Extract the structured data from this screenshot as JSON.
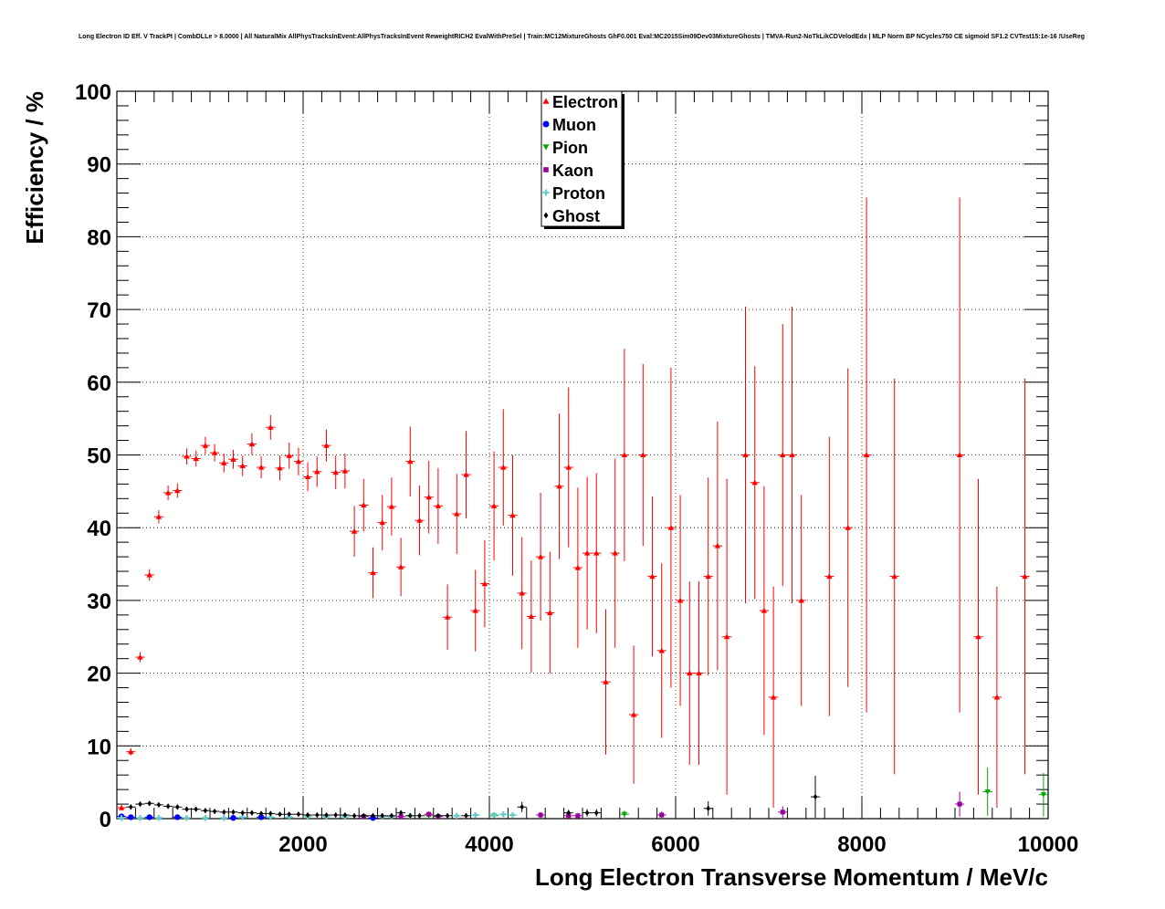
{
  "chart_data": {
    "type": "scatter",
    "title": "Long Electron ID Eff. V TrackPt | CombDLLe > 8.0000 | All NaturalMix AllPhysTracksInEvent:AllPhysTracksInEvent ReweightRICH2 EvalWithPreSel | Train:MC12MixtureGhosts GhF0.001 Eval:MC2015Sim09Dev03MixtureGhosts | TMVA-Run2-NoTkLikCDVelodEdx | MLP Norm BP NCycles750 CE sigmoid SF1.2 CVTest15:1e-16 !UseReg",
    "xlabel": "Long Electron Transverse Momentum / MeV/c",
    "ylabel": "Efficiency / %",
    "xlim": [
      0,
      10000
    ],
    "ylim": [
      0,
      100
    ],
    "xticks": [
      2000,
      4000,
      6000,
      8000,
      10000
    ],
    "yticks": [
      0,
      10,
      20,
      30,
      40,
      50,
      60,
      70,
      80,
      90,
      100
    ],
    "grid": true,
    "legend_position": "top-center",
    "series": [
      {
        "name": "Electron",
        "color": "#ff0000",
        "marker": "triangle-up",
        "points": [
          [
            50,
            1.5,
            0.4
          ],
          [
            150,
            9.2,
            0.5
          ],
          [
            250,
            22.2,
            0.7
          ],
          [
            350,
            33.5,
            0.8
          ],
          [
            450,
            41.5,
            0.9
          ],
          [
            550,
            44.8,
            1.0
          ],
          [
            650,
            45.1,
            1.0
          ],
          [
            750,
            49.8,
            1.1
          ],
          [
            850,
            49.5,
            1.1
          ],
          [
            950,
            51.3,
            1.2
          ],
          [
            1050,
            50.3,
            1.2
          ],
          [
            1150,
            48.9,
            1.3
          ],
          [
            1250,
            49.4,
            1.3
          ],
          [
            1350,
            48.5,
            1.4
          ],
          [
            1450,
            51.5,
            1.5
          ],
          [
            1550,
            48.3,
            1.5
          ],
          [
            1650,
            53.8,
            1.7
          ],
          [
            1750,
            48.2,
            1.7
          ],
          [
            1850,
            49.9,
            1.8
          ],
          [
            1950,
            49.1,
            1.9
          ],
          [
            2050,
            47.0,
            2.0
          ],
          [
            2150,
            47.7,
            2.1
          ],
          [
            2250,
            51.3,
            2.2
          ],
          [
            2350,
            47.6,
            2.3
          ],
          [
            2450,
            47.8,
            2.4
          ],
          [
            2550,
            39.5,
            3.5
          ],
          [
            2650,
            43.1,
            3.6
          ],
          [
            2750,
            33.8,
            3.5
          ],
          [
            2850,
            40.7,
            3.8
          ],
          [
            2950,
            42.9,
            4.0
          ],
          [
            3050,
            34.6,
            4.0
          ],
          [
            3150,
            49.1,
            4.8
          ],
          [
            3250,
            41.0,
            4.8
          ],
          [
            3350,
            44.2,
            5.0
          ],
          [
            3450,
            43.0,
            5.2
          ],
          [
            3550,
            27.7,
            4.5
          ],
          [
            3650,
            41.9,
            5.5
          ],
          [
            3750,
            47.3,
            6.0
          ],
          [
            3850,
            28.6,
            5.6
          ],
          [
            3950,
            32.3,
            6.0
          ],
          [
            4050,
            43.0,
            7.5
          ],
          [
            4150,
            48.3,
            8.0
          ],
          [
            4250,
            41.7,
            8.3
          ],
          [
            4350,
            31.0,
            7.7
          ],
          [
            4450,
            27.8,
            7.7
          ],
          [
            4550,
            36.0,
            8.8
          ],
          [
            4650,
            28.3,
            8.4
          ],
          [
            4750,
            45.7,
            10.0
          ],
          [
            4850,
            48.3,
            11.0
          ],
          [
            4950,
            34.5,
            11.0
          ],
          [
            5050,
            36.5,
            10.5
          ],
          [
            5150,
            36.5,
            11.0
          ],
          [
            5250,
            18.8,
            10.0
          ],
          [
            5350,
            36.5,
            13.0
          ],
          [
            5450,
            50.0,
            14.6
          ],
          [
            5550,
            14.3,
            9.5
          ],
          [
            5650,
            50.0,
            12.5
          ],
          [
            5750,
            33.3,
            11.0
          ],
          [
            5850,
            23.1,
            12.0
          ],
          [
            5950,
            40.0,
            22.0
          ],
          [
            6050,
            30.0,
            14.5
          ],
          [
            6150,
            20.0,
            12.6
          ],
          [
            6250,
            20.0,
            12.6
          ],
          [
            6350,
            33.3,
            13.6
          ],
          [
            6450,
            37.5,
            17.1
          ],
          [
            6550,
            25.0,
            21.7
          ],
          [
            6750,
            50.0,
            20.4
          ],
          [
            6850,
            46.2,
            16.0
          ],
          [
            6950,
            28.6,
            17.1
          ],
          [
            7050,
            16.7,
            15.2
          ],
          [
            7150,
            50.0,
            18.0
          ],
          [
            7250,
            50.0,
            20.4
          ],
          [
            7350,
            30.0,
            14.5
          ],
          [
            7650,
            33.3,
            19.2
          ],
          [
            7850,
            40.0,
            21.9
          ],
          [
            8050,
            50.0,
            35.4
          ],
          [
            8350,
            33.3,
            27.2
          ],
          [
            9050,
            50.0,
            35.4
          ],
          [
            9250,
            25.0,
            21.7
          ],
          [
            9450,
            16.7,
            15.2
          ],
          [
            9750,
            33.3,
            27.2
          ]
        ]
      },
      {
        "name": "Muon",
        "color": "#0000ff",
        "marker": "circle",
        "points": [
          [
            50,
            0.3,
            0.2
          ],
          [
            150,
            0.2,
            0.1
          ],
          [
            350,
            0.2,
            0.1
          ],
          [
            650,
            0.2,
            0.1
          ],
          [
            1250,
            0.1,
            0.1
          ],
          [
            1550,
            0.2,
            0.1
          ],
          [
            2750,
            0.1,
            0.1
          ]
        ]
      },
      {
        "name": "Pion",
        "color": "#00aa00",
        "marker": "triangle-down",
        "points": [
          [
            3350,
            0.4,
            0.3
          ],
          [
            4050,
            0.4,
            0.3
          ],
          [
            5450,
            0.6,
            0.5
          ],
          [
            9350,
            3.7,
            3.3
          ],
          [
            9950,
            3.3,
            3.0
          ]
        ]
      },
      {
        "name": "Kaon",
        "color": "#990099",
        "marker": "square",
        "points": [
          [
            2650,
            0.3,
            0.2
          ],
          [
            3050,
            0.3,
            0.3
          ],
          [
            3350,
            0.6,
            0.4
          ],
          [
            3450,
            0.3,
            0.3
          ],
          [
            4550,
            0.5,
            0.4
          ],
          [
            4850,
            0.4,
            0.4
          ],
          [
            4950,
            0.4,
            0.4
          ],
          [
            5850,
            0.5,
            0.5
          ],
          [
            7150,
            0.9,
            0.8
          ],
          [
            9050,
            2.0,
            1.7
          ]
        ]
      },
      {
        "name": "Proton",
        "color": "#66cccc",
        "marker": "cross",
        "points": [
          [
            50,
            0.1,
            0.1
          ],
          [
            250,
            0.1,
            0.1
          ],
          [
            450,
            0.1,
            0.1
          ],
          [
            750,
            0.1,
            0.1
          ],
          [
            950,
            0.1,
            0.1
          ],
          [
            1150,
            0.1,
            0.1
          ],
          [
            1350,
            0.2,
            0.1
          ],
          [
            1650,
            0.2,
            0.1
          ],
          [
            1850,
            0.2,
            0.1
          ],
          [
            2050,
            0.3,
            0.1
          ],
          [
            2250,
            0.3,
            0.1
          ],
          [
            2450,
            0.3,
            0.1
          ],
          [
            2850,
            0.3,
            0.1
          ],
          [
            2950,
            0.3,
            0.2
          ],
          [
            3150,
            0.4,
            0.2
          ],
          [
            3650,
            0.4,
            0.2
          ],
          [
            3850,
            0.5,
            0.3
          ],
          [
            4050,
            0.5,
            0.3
          ],
          [
            4150,
            0.6,
            0.3
          ],
          [
            4250,
            0.5,
            0.3
          ]
        ]
      },
      {
        "name": "Ghost",
        "color": "#000000",
        "marker": "diamond",
        "points": [
          [
            150,
            1.6,
            0.1
          ],
          [
            250,
            2.0,
            0.1
          ],
          [
            350,
            2.1,
            0.1
          ],
          [
            450,
            1.9,
            0.1
          ],
          [
            550,
            1.7,
            0.1
          ],
          [
            650,
            1.6,
            0.1
          ],
          [
            750,
            1.3,
            0.1
          ],
          [
            850,
            1.3,
            0.1
          ],
          [
            950,
            1.1,
            0.1
          ],
          [
            1050,
            1.0,
            0.1
          ],
          [
            1150,
            0.9,
            0.1
          ],
          [
            1250,
            0.9,
            0.1
          ],
          [
            1350,
            0.8,
            0.1
          ],
          [
            1450,
            0.8,
            0.1
          ],
          [
            1550,
            0.7,
            0.1
          ],
          [
            1650,
            0.7,
            0.1
          ],
          [
            1750,
            0.6,
            0.1
          ],
          [
            1850,
            0.6,
            0.1
          ],
          [
            1950,
            0.6,
            0.1
          ],
          [
            2050,
            0.5,
            0.1
          ],
          [
            2150,
            0.5,
            0.1
          ],
          [
            2250,
            0.5,
            0.1
          ],
          [
            2350,
            0.5,
            0.1
          ],
          [
            2450,
            0.5,
            0.1
          ],
          [
            2550,
            0.4,
            0.1
          ],
          [
            2650,
            0.4,
            0.1
          ],
          [
            2750,
            0.4,
            0.1
          ],
          [
            2850,
            0.4,
            0.1
          ],
          [
            2950,
            0.4,
            0.2
          ],
          [
            3050,
            0.8,
            0.3
          ],
          [
            3150,
            0.4,
            0.2
          ],
          [
            3250,
            0.4,
            0.2
          ],
          [
            3450,
            0.4,
            0.2
          ],
          [
            3550,
            0.4,
            0.2
          ],
          [
            3750,
            0.4,
            0.3
          ],
          [
            4350,
            1.6,
            0.7
          ],
          [
            4850,
            0.8,
            0.4
          ],
          [
            5050,
            0.8,
            0.5
          ],
          [
            5150,
            0.8,
            0.5
          ],
          [
            6350,
            1.4,
            1.0
          ],
          [
            7500,
            3.0,
            2.9
          ]
        ]
      }
    ]
  }
}
